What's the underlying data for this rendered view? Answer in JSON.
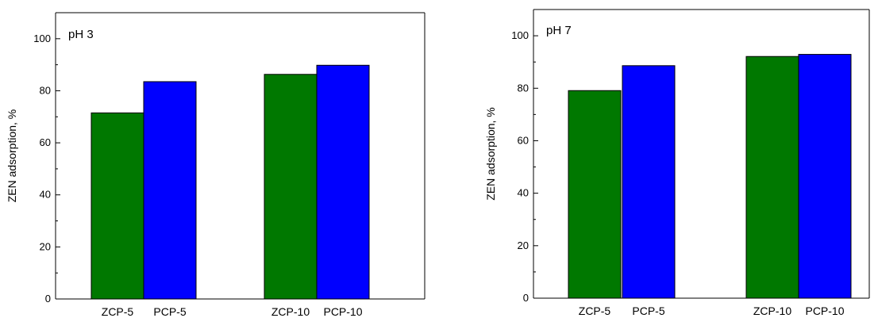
{
  "chart_data": [
    {
      "type": "bar",
      "annotation": "pH 3",
      "ylabel": "ZEN adsorption, %",
      "ylim": [
        0,
        110
      ],
      "yticks": [
        0,
        20,
        40,
        60,
        80,
        100
      ],
      "bars": [
        {
          "label": "ZCP-5",
          "value": 71.5,
          "color": "#007800"
        },
        {
          "label": "PCP-5",
          "value": 83.5,
          "color": "#0000ff"
        },
        {
          "label": "ZCP-10",
          "value": 86.3,
          "color": "#007800"
        },
        {
          "label": "PCP-10",
          "value": 89.8,
          "color": "#0000ff"
        }
      ],
      "grid": false,
      "legend": "none"
    },
    {
      "type": "bar",
      "annotation": "pH 7",
      "ylabel": "ZEN adsorption, %",
      "ylim": [
        0,
        110
      ],
      "yticks": [
        0,
        20,
        40,
        60,
        80,
        100
      ],
      "bars": [
        {
          "label": "ZCP-5",
          "value": 79.1,
          "color": "#007800"
        },
        {
          "label": "PCP-5",
          "value": 88.6,
          "color": "#0000ff"
        },
        {
          "label": "ZCP-10",
          "value": 92.1,
          "color": "#007800"
        },
        {
          "label": "PCP-10",
          "value": 92.9,
          "color": "#0000ff"
        }
      ],
      "grid": false,
      "legend": "none"
    }
  ]
}
